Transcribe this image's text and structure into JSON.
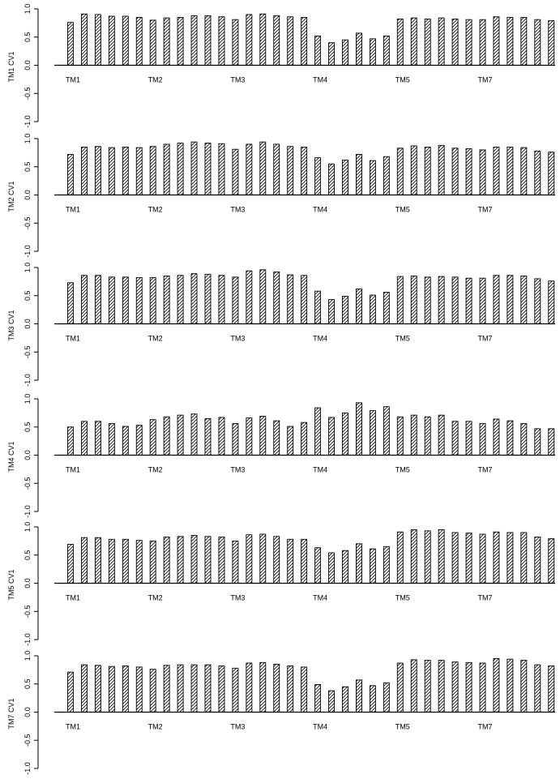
{
  "chart_data": [
    {
      "type": "bar",
      "ylabel": "TM1 CV1",
      "ylim": [
        -1.0,
        1.0
      ],
      "yticks": [
        "1.0",
        "0.5",
        "0.0",
        "-0.5",
        "-1.0"
      ],
      "group_labels": [
        "TM1",
        "TM2",
        "TM3",
        "TM4",
        "TM5",
        "TM7"
      ],
      "values": [
        0.76,
        0.91,
        0.9,
        0.87,
        0.87,
        0.85,
        0.8,
        0.84,
        0.85,
        0.88,
        0.88,
        0.86,
        0.81,
        0.9,
        0.91,
        0.88,
        0.86,
        0.85,
        0.52,
        0.4,
        0.45,
        0.57,
        0.47,
        0.52,
        0.82,
        0.84,
        0.82,
        0.84,
        0.82,
        0.81,
        0.81,
        0.86,
        0.85,
        0.85,
        0.81,
        0.79
      ]
    },
    {
      "type": "bar",
      "ylabel": "TM2 CV1",
      "ylim": [
        -1.0,
        1.0
      ],
      "yticks": [
        "1.0",
        "0.5",
        "0.0",
        "-0.5",
        "-1.0"
      ],
      "group_labels": [
        "TM1",
        "TM2",
        "TM3",
        "TM4",
        "TM5",
        "TM7"
      ],
      "values": [
        0.72,
        0.85,
        0.86,
        0.84,
        0.85,
        0.84,
        0.86,
        0.9,
        0.92,
        0.94,
        0.92,
        0.91,
        0.81,
        0.9,
        0.94,
        0.9,
        0.86,
        0.85,
        0.66,
        0.55,
        0.62,
        0.72,
        0.61,
        0.68,
        0.83,
        0.87,
        0.85,
        0.88,
        0.83,
        0.82,
        0.8,
        0.85,
        0.85,
        0.84,
        0.78,
        0.76
      ]
    },
    {
      "type": "bar",
      "ylabel": "TM3 CV1",
      "ylim": [
        -1.0,
        1.0
      ],
      "yticks": [
        "1.0",
        "0.5",
        "0.0",
        "-0.5",
        "-1.0"
      ],
      "group_labels": [
        "TM1",
        "TM2",
        "TM3",
        "TM4",
        "TM5",
        "TM7"
      ],
      "values": [
        0.73,
        0.86,
        0.86,
        0.83,
        0.83,
        0.82,
        0.82,
        0.85,
        0.86,
        0.89,
        0.88,
        0.86,
        0.83,
        0.94,
        0.96,
        0.92,
        0.87,
        0.86,
        0.58,
        0.43,
        0.49,
        0.62,
        0.51,
        0.56,
        0.84,
        0.85,
        0.83,
        0.84,
        0.83,
        0.81,
        0.81,
        0.86,
        0.86,
        0.85,
        0.8,
        0.76
      ]
    },
    {
      "type": "bar",
      "ylabel": "TM4 CV1",
      "ylim": [
        -1.0,
        1.0
      ],
      "yticks": [
        "1.0",
        "0.5",
        "0.0",
        "-0.5",
        "-1.0"
      ],
      "group_labels": [
        "TM1",
        "TM2",
        "TM3",
        "TM4",
        "TM5",
        "TM7"
      ],
      "values": [
        0.5,
        0.6,
        0.6,
        0.56,
        0.51,
        0.53,
        0.63,
        0.68,
        0.71,
        0.73,
        0.65,
        0.67,
        0.56,
        0.66,
        0.69,
        0.61,
        0.51,
        0.58,
        0.84,
        0.67,
        0.75,
        0.93,
        0.79,
        0.86,
        0.68,
        0.71,
        0.68,
        0.71,
        0.6,
        0.6,
        0.56,
        0.64,
        0.61,
        0.56,
        0.47,
        0.47
      ]
    },
    {
      "type": "bar",
      "ylabel": "TM5 CV1",
      "ylim": [
        -1.0,
        1.0
      ],
      "yticks": [
        "1.0",
        "0.5",
        "0.0",
        "-0.5",
        "-1.0"
      ],
      "group_labels": [
        "TM1",
        "TM2",
        "TM3",
        "TM4",
        "TM5",
        "TM7"
      ],
      "values": [
        0.69,
        0.81,
        0.81,
        0.78,
        0.78,
        0.76,
        0.75,
        0.82,
        0.83,
        0.85,
        0.83,
        0.82,
        0.75,
        0.86,
        0.87,
        0.83,
        0.78,
        0.78,
        0.63,
        0.54,
        0.58,
        0.7,
        0.61,
        0.65,
        0.91,
        0.95,
        0.93,
        0.95,
        0.9,
        0.89,
        0.87,
        0.91,
        0.9,
        0.9,
        0.82,
        0.79
      ]
    },
    {
      "type": "bar",
      "ylabel": "TM7 CV1",
      "ylim": [
        -1.0,
        1.0
      ],
      "yticks": [
        "1.0",
        "0.5",
        "0.0",
        "-0.5",
        "-1.0"
      ],
      "group_labels": [
        "TM1",
        "TM2",
        "TM3",
        "TM4",
        "TM5",
        "TM7"
      ],
      "values": [
        0.71,
        0.84,
        0.83,
        0.81,
        0.82,
        0.8,
        0.76,
        0.83,
        0.84,
        0.84,
        0.84,
        0.82,
        0.78,
        0.87,
        0.88,
        0.85,
        0.82,
        0.8,
        0.49,
        0.38,
        0.45,
        0.57,
        0.47,
        0.52,
        0.87,
        0.93,
        0.92,
        0.92,
        0.89,
        0.88,
        0.87,
        0.95,
        0.94,
        0.92,
        0.84,
        0.82
      ]
    }
  ]
}
